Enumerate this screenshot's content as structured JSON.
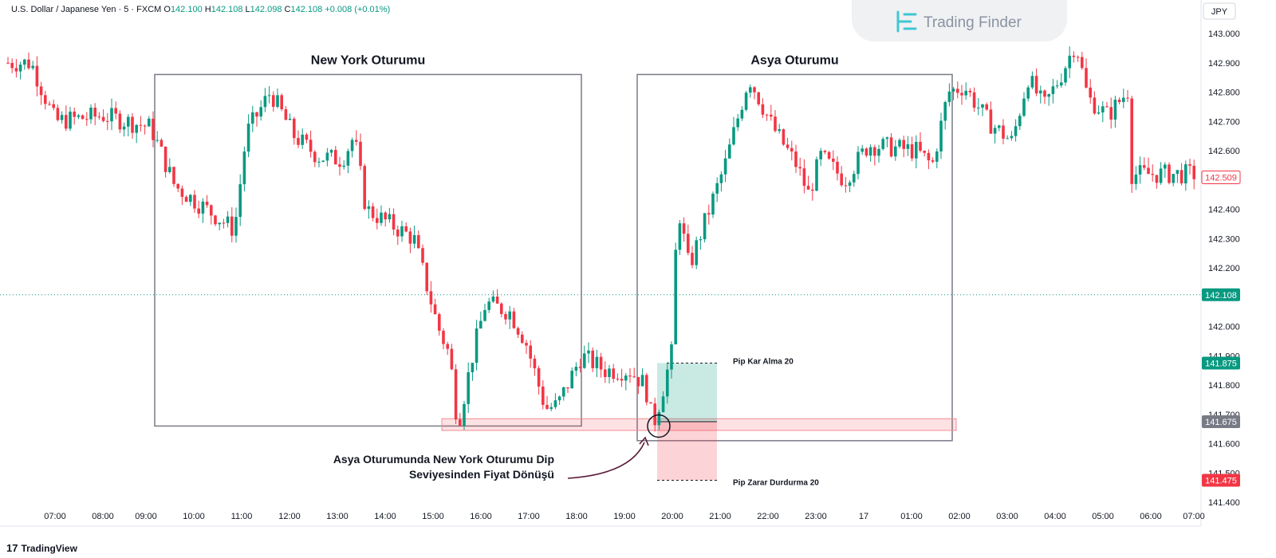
{
  "header": {
    "symbol": "U.S. Dollar / Japanese Yen · 5 · FXCM",
    "o_label": "O",
    "o": "142.100",
    "h_label": "H",
    "h": "142.108",
    "l_label": "L",
    "l": "142.098",
    "c_label": "C",
    "c": "142.108",
    "change": "+0.008 (+0.01%)"
  },
  "brand": {
    "name": "Trading Finder"
  },
  "footer": {
    "logo": "TradingView"
  },
  "colors": {
    "up": "#089981",
    "down": "#f23645",
    "axis_text": "#131722",
    "box": "#787b86"
  },
  "chart_data": {
    "type": "candlestick",
    "currency": "JPY",
    "ylim": [
      141.38,
      143.08
    ],
    "y_ticks": [
      "143.000",
      "142.900",
      "142.800",
      "142.700",
      "142.600",
      "142.500",
      "142.400",
      "142.300",
      "142.200",
      "142.100",
      "142.000",
      "141.900",
      "141.800",
      "141.700",
      "141.600",
      "141.500",
      "141.400"
    ],
    "x_ticks": [
      "07:00",
      "08:00",
      "09:00",
      "10:00",
      "11:00",
      "12:00",
      "13:00",
      "14:00",
      "15:00",
      "16:00",
      "17:00",
      "18:00",
      "19:00",
      "20:00",
      "21:00",
      "22:00",
      "23:00",
      "17",
      "01:00",
      "02:00",
      "03:00",
      "04:00",
      "05:00",
      "06:00",
      "07:00"
    ],
    "price_markers": [
      {
        "value": 142.509,
        "label": "142.509",
        "style": "outline",
        "color": "#f23645"
      },
      {
        "value": 142.108,
        "label": "142.108",
        "style": "filled",
        "color": "#089981"
      },
      {
        "value": 141.875,
        "label": "141.875",
        "style": "filled",
        "color": "#089981"
      },
      {
        "value": 141.675,
        "label": "141.675",
        "style": "filled",
        "color": "#787b86"
      },
      {
        "value": 141.475,
        "label": "141.475",
        "style": "filled",
        "color": "#f23645"
      }
    ],
    "current_price": 142.108,
    "closes": [
      {
        "time": "06:30",
        "close": 142.9
      },
      {
        "time": "07:00",
        "close": 142.7
      },
      {
        "time": "08:00",
        "close": 142.72
      },
      {
        "time": "09:00",
        "close": 142.68
      },
      {
        "time": "09:30",
        "close": 142.48
      },
      {
        "time": "10:00",
        "close": 142.42
      },
      {
        "time": "10:45",
        "close": 142.33
      },
      {
        "time": "11:00",
        "close": 142.66
      },
      {
        "time": "11:30",
        "close": 142.8
      },
      {
        "time": "12:00",
        "close": 142.65
      },
      {
        "time": "12:30",
        "close": 142.58
      },
      {
        "time": "13:00",
        "close": 142.57
      },
      {
        "time": "13:15",
        "close": 142.65
      },
      {
        "time": "13:30",
        "close": 142.4
      },
      {
        "time": "14:00",
        "close": 142.35
      },
      {
        "time": "14:30",
        "close": 142.3
      },
      {
        "time": "15:00",
        "close": 142.0
      },
      {
        "time": "15:15",
        "close": 141.9
      },
      {
        "time": "15:25",
        "close": 141.66
      },
      {
        "time": "15:45",
        "close": 141.92
      },
      {
        "time": "16:00",
        "close": 142.08
      },
      {
        "time": "16:30",
        "close": 142.05
      },
      {
        "time": "16:50",
        "close": 141.95
      },
      {
        "time": "17:15",
        "close": 141.72
      },
      {
        "time": "17:30",
        "close": 141.73
      },
      {
        "time": "18:00",
        "close": 141.9
      },
      {
        "time": "18:30",
        "close": 141.85
      },
      {
        "time": "19:00",
        "close": 141.85
      },
      {
        "time": "19:20",
        "close": 141.8
      },
      {
        "time": "19:30",
        "close": 141.66
      },
      {
        "time": "19:40",
        "close": 141.76
      },
      {
        "time": "19:55",
        "close": 141.93
      },
      {
        "time": "20:00",
        "close": 142.43
      },
      {
        "time": "20:15",
        "close": 142.2
      },
      {
        "time": "20:30",
        "close": 142.32
      },
      {
        "time": "21:00",
        "close": 142.55
      },
      {
        "time": "21:30",
        "close": 142.85
      },
      {
        "time": "22:00",
        "close": 142.68
      },
      {
        "time": "22:30",
        "close": 142.55
      },
      {
        "time": "22:45",
        "close": 142.45
      },
      {
        "time": "23:00",
        "close": 142.58
      },
      {
        "time": "23:30",
        "close": 142.5
      },
      {
        "time": "00:00",
        "close": 142.62
      },
      {
        "time": "01:00",
        "close": 142.6
      },
      {
        "time": "01:20",
        "close": 142.55
      },
      {
        "time": "01:40",
        "close": 142.8
      },
      {
        "time": "02:00",
        "close": 142.82
      },
      {
        "time": "02:30",
        "close": 142.7
      },
      {
        "time": "03:00",
        "close": 142.63
      },
      {
        "time": "03:20",
        "close": 142.85
      },
      {
        "time": "03:40",
        "close": 142.75
      },
      {
        "time": "04:00",
        "close": 142.85
      },
      {
        "time": "04:20",
        "close": 142.97
      },
      {
        "time": "04:35",
        "close": 142.78
      },
      {
        "time": "05:00",
        "close": 142.72
      },
      {
        "time": "05:30",
        "close": 142.82
      },
      {
        "time": "06:00",
        "close": 142.7
      },
      {
        "time": "06:30",
        "close": 142.55
      },
      {
        "time": "07:00",
        "close": 142.52
      }
    ],
    "sessions": [
      {
        "label": "New York Oturumu",
        "start": "09:05",
        "end": "18:00",
        "high": 142.86,
        "low": 141.66
      },
      {
        "label": "Asya Oturumu",
        "start": "19:10",
        "end": "01:45",
        "high": 142.86,
        "low": 141.61
      }
    ],
    "level_zone": {
      "from": 141.645,
      "to": 141.685,
      "start": "15:05",
      "end": "01:50"
    },
    "take_profit": {
      "label": "Pip Kar Alma 20",
      "entry": 141.675,
      "target": 141.875,
      "start": "19:35",
      "end": "20:50"
    },
    "stop_loss": {
      "label": "Pip Zarar Durdurma 20",
      "entry": 141.675,
      "stop": 141.475,
      "start": "19:35",
      "end": "20:50"
    },
    "annotation": {
      "lines": [
        "Asya Oturumunda New York Oturumu Dip",
        "Seviyesinden Fiyat Dönüşü"
      ],
      "anchor_time": "19:30",
      "anchor_price": 141.66
    }
  }
}
